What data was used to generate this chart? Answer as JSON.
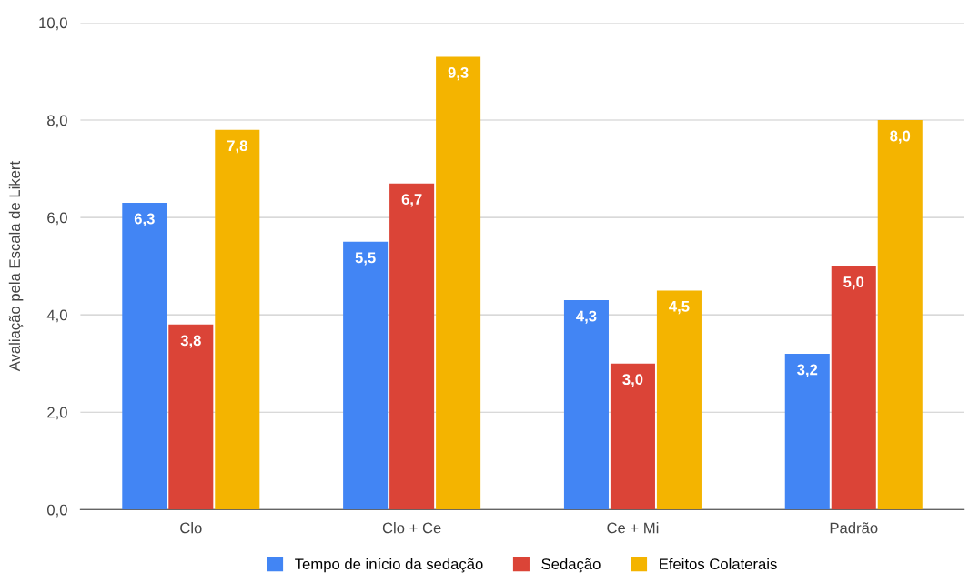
{
  "chart_data": {
    "type": "bar",
    "ylabel": "Avaliação pela Escala de Likert",
    "categories": [
      "Clo",
      "Clo + Ce",
      "Ce + Mi",
      "Padrão"
    ],
    "series": [
      {
        "name": "Tempo de início da sedação",
        "color": "#4285f4",
        "values": [
          6.3,
          5.5,
          4.3,
          3.2
        ],
        "value_labels": [
          "6,3",
          "5,5",
          "4,3",
          "3,2"
        ]
      },
      {
        "name": "Sedação",
        "color": "#db4437",
        "values": [
          3.8,
          6.7,
          3.0,
          5.0
        ],
        "value_labels": [
          "3,8",
          "6,7",
          "3,0",
          "5,0"
        ]
      },
      {
        "name": "Efeitos Colaterais",
        "color": "#f4b400",
        "values": [
          7.8,
          9.3,
          4.5,
          8.0
        ],
        "value_labels": [
          "7,8",
          "9,3",
          "4,5",
          "8,0"
        ]
      }
    ],
    "ylim": [
      0,
      10
    ],
    "yticks": [
      {
        "value": 0,
        "label": "0,0"
      },
      {
        "value": 2,
        "label": "2,0"
      },
      {
        "value": 4,
        "label": "4,0"
      },
      {
        "value": 6,
        "label": "6,0"
      },
      {
        "value": 8,
        "label": "8,0"
      },
      {
        "value": 10,
        "label": "10,0"
      }
    ],
    "grid": "y",
    "legend": "bottom"
  }
}
